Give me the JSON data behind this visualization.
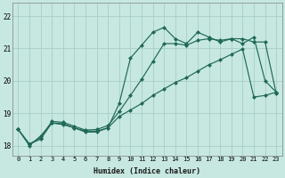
{
  "bg_color": "#c6e8e0",
  "grid_color": "#a8cec8",
  "line_color": "#206858",
  "xlabel": "Humidex (Indice chaleur)",
  "ylim": [
    17.7,
    22.4
  ],
  "xlim": [
    -0.5,
    23.5
  ],
  "yticks": [
    18,
    19,
    20,
    21,
    22
  ],
  "xticks": [
    0,
    1,
    2,
    3,
    4,
    5,
    6,
    7,
    8,
    9,
    10,
    11,
    12,
    13,
    14,
    15,
    16,
    17,
    18,
    19,
    20,
    21,
    22,
    23
  ],
  "series1": [
    18.5,
    18.0,
    18.3,
    18.7,
    18.65,
    18.55,
    18.45,
    18.45,
    18.55,
    19.3,
    20.7,
    21.1,
    21.5,
    21.65,
    21.3,
    21.15,
    21.5,
    21.35,
    21.2,
    21.3,
    21.15,
    21.35,
    20.0,
    19.65
  ],
  "series2": [
    18.5,
    18.05,
    18.25,
    18.75,
    18.72,
    18.6,
    18.48,
    18.5,
    18.62,
    19.05,
    19.55,
    20.05,
    20.6,
    21.15,
    21.15,
    21.1,
    21.25,
    21.3,
    21.25,
    21.3,
    21.3,
    21.2,
    21.2,
    19.6
  ],
  "series3": [
    18.5,
    18.05,
    18.2,
    18.7,
    18.68,
    18.55,
    18.42,
    18.42,
    18.55,
    18.9,
    19.1,
    19.3,
    19.55,
    19.75,
    19.95,
    20.1,
    20.3,
    20.5,
    20.65,
    20.82,
    20.98,
    19.5,
    19.55,
    19.65
  ]
}
